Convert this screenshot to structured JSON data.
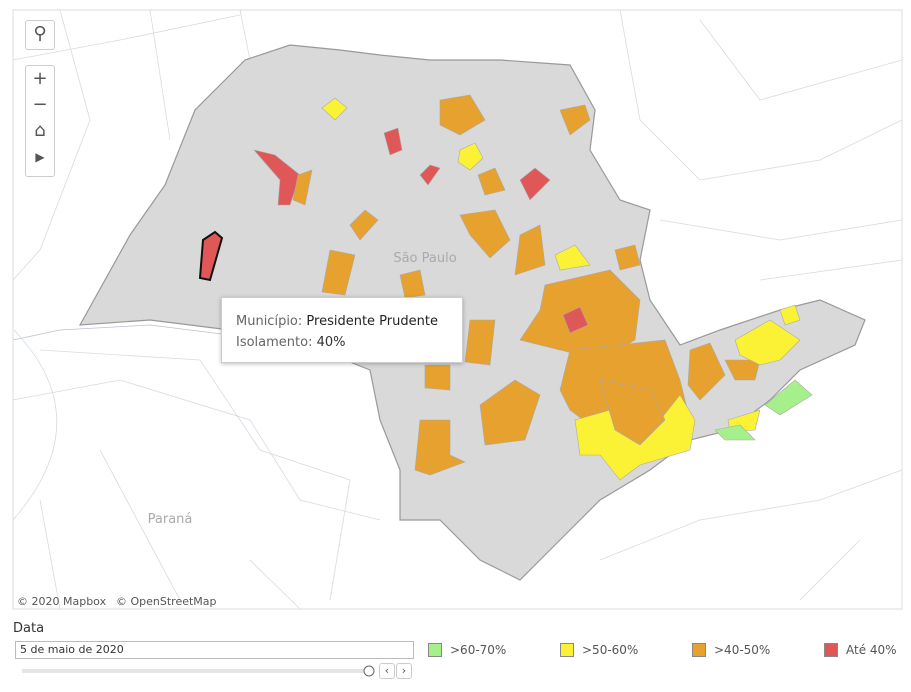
{
  "map": {
    "labels": [
      "São Paulo",
      "Paraná"
    ],
    "attribution": [
      "© 2020 Mapbox",
      "© OpenStreetMap"
    ]
  },
  "tooltip": {
    "field1_label": "Município:",
    "field1_value": "Presidente Prudente",
    "field2_label": "Isolamento:",
    "field2_value": "40%"
  },
  "filter": {
    "title": "Data",
    "value": "5 de maio de 2020"
  },
  "legend": {
    "items": [
      {
        "label": ">60-70%",
        "color": "#a6f08c"
      },
      {
        "label": ">50-60%",
        "color": "#fbf236"
      },
      {
        "label": ">40-50%",
        "color": "#e6a12e"
      },
      {
        "label": "Até 40%",
        "color": "#e05757"
      }
    ]
  }
}
